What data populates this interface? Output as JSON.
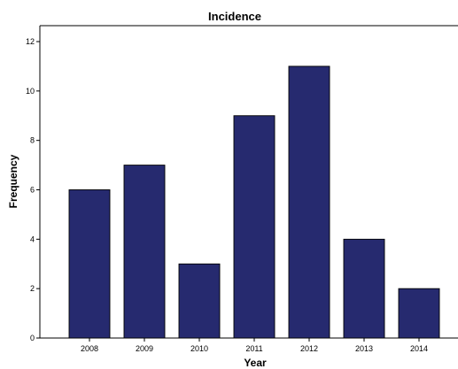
{
  "chart_data": {
    "type": "bar",
    "title": "Incidence",
    "xlabel": "Year",
    "ylabel": "Frequency",
    "categories": [
      "2008",
      "2009",
      "2010",
      "2011",
      "2012",
      "2013",
      "2014"
    ],
    "values": [
      6,
      7,
      3,
      9,
      11,
      4,
      2
    ],
    "ylim": [
      0,
      12
    ],
    "yticks": [
      "0",
      "2",
      "4",
      "6",
      "8",
      "10",
      "12"
    ],
    "grid": false,
    "legend": "none",
    "bar_color": "#262a6f"
  }
}
